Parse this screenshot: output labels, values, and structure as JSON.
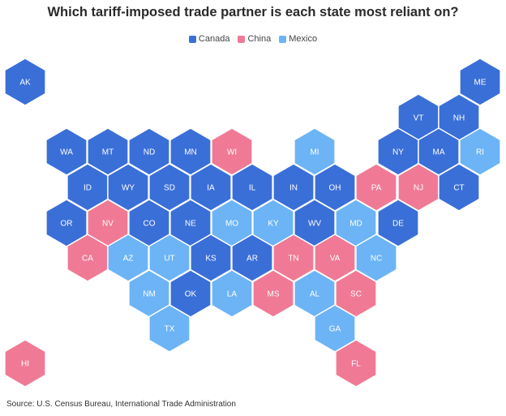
{
  "title": "Which tariff-imposed trade partner is each state most reliant on?",
  "source": "Source: U.S. Census Bureau, International Trade Administration",
  "colors": {
    "Canada": "#3a6fd8",
    "China": "#f07a95",
    "Mexico": "#6cb4f5"
  },
  "legend": [
    {
      "name": "Canada",
      "color": "#3a6fd8"
    },
    {
      "name": "China",
      "color": "#f07a95"
    },
    {
      "name": "Mexico",
      "color": "#6cb4f5"
    }
  ],
  "chart_data": {
    "type": "hex-tile-map",
    "categories": [
      "Canada",
      "China",
      "Mexico"
    ],
    "states": [
      {
        "abbr": "AK",
        "partner": "Canada"
      },
      {
        "abbr": "ME",
        "partner": "Canada"
      },
      {
        "abbr": "VT",
        "partner": "Canada"
      },
      {
        "abbr": "NH",
        "partner": "Canada"
      },
      {
        "abbr": "WA",
        "partner": "Canada"
      },
      {
        "abbr": "MT",
        "partner": "Canada"
      },
      {
        "abbr": "ND",
        "partner": "Canada"
      },
      {
        "abbr": "MN",
        "partner": "Canada"
      },
      {
        "abbr": "WI",
        "partner": "China"
      },
      {
        "abbr": "MI",
        "partner": "Mexico"
      },
      {
        "abbr": "NY",
        "partner": "Canada"
      },
      {
        "abbr": "MA",
        "partner": "Canada"
      },
      {
        "abbr": "RI",
        "partner": "Mexico"
      },
      {
        "abbr": "ID",
        "partner": "Canada"
      },
      {
        "abbr": "WY",
        "partner": "Canada"
      },
      {
        "abbr": "SD",
        "partner": "Canada"
      },
      {
        "abbr": "IA",
        "partner": "Canada"
      },
      {
        "abbr": "IL",
        "partner": "Canada"
      },
      {
        "abbr": "IN",
        "partner": "Canada"
      },
      {
        "abbr": "OH",
        "partner": "Canada"
      },
      {
        "abbr": "PA",
        "partner": "China"
      },
      {
        "abbr": "NJ",
        "partner": "China"
      },
      {
        "abbr": "CT",
        "partner": "Canada"
      },
      {
        "abbr": "OR",
        "partner": "Canada"
      },
      {
        "abbr": "NV",
        "partner": "China"
      },
      {
        "abbr": "CO",
        "partner": "Canada"
      },
      {
        "abbr": "NE",
        "partner": "Canada"
      },
      {
        "abbr": "MO",
        "partner": "Mexico"
      },
      {
        "abbr": "KY",
        "partner": "Mexico"
      },
      {
        "abbr": "WV",
        "partner": "Canada"
      },
      {
        "abbr": "MD",
        "partner": "Mexico"
      },
      {
        "abbr": "DE",
        "partner": "Canada"
      },
      {
        "abbr": "CA",
        "partner": "China"
      },
      {
        "abbr": "AZ",
        "partner": "Mexico"
      },
      {
        "abbr": "UT",
        "partner": "Mexico"
      },
      {
        "abbr": "KS",
        "partner": "Canada"
      },
      {
        "abbr": "AR",
        "partner": "Canada"
      },
      {
        "abbr": "TN",
        "partner": "China"
      },
      {
        "abbr": "VA",
        "partner": "China"
      },
      {
        "abbr": "NC",
        "partner": "Mexico"
      },
      {
        "abbr": "NM",
        "partner": "Mexico"
      },
      {
        "abbr": "OK",
        "partner": "Canada"
      },
      {
        "abbr": "LA",
        "partner": "Mexico"
      },
      {
        "abbr": "MS",
        "partner": "China"
      },
      {
        "abbr": "AL",
        "partner": "Mexico"
      },
      {
        "abbr": "SC",
        "partner": "China"
      },
      {
        "abbr": "TX",
        "partner": "Mexico"
      },
      {
        "abbr": "GA",
        "partner": "Mexico"
      },
      {
        "abbr": "HI",
        "partner": "China"
      },
      {
        "abbr": "FL",
        "partner": "China"
      }
    ]
  }
}
